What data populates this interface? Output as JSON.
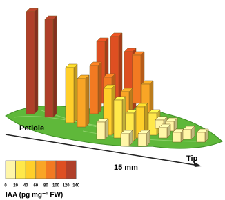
{
  "labels": {
    "petiole": "Petiole",
    "tip": "Tip",
    "scale": "15 mm"
  },
  "legend": {
    "title": "IAA (pg mg⁻¹ FW)",
    "ticks": [
      "0",
      "20",
      "40",
      "60",
      "80",
      "100",
      "120",
      "140"
    ]
  }
}
